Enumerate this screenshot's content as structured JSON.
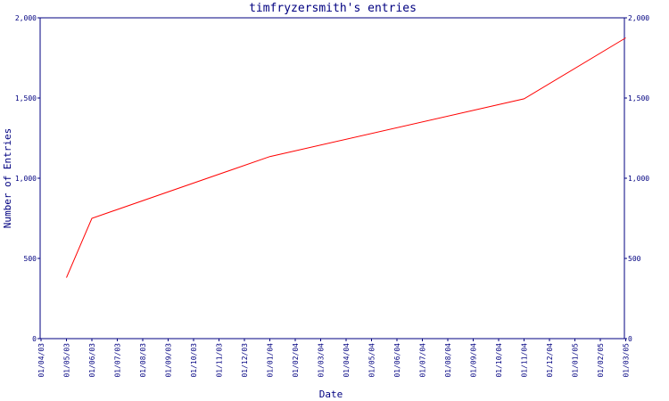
{
  "chart_data": {
    "type": "line",
    "title": "timfryzersmith's entries",
    "xlabel": "Date",
    "ylabel": "Number of Entries",
    "ylim": [
      0,
      2000
    ],
    "y_ticks": [
      0,
      500,
      1000,
      1500,
      2000
    ],
    "y_tick_labels": [
      "0",
      "500",
      "1,000",
      "1,500",
      "2,000"
    ],
    "x_ticks": [
      "01/04/03",
      "01/05/03",
      "01/06/03",
      "01/07/03",
      "01/08/03",
      "01/09/03",
      "01/10/03",
      "01/11/03",
      "01/12/03",
      "01/01/04",
      "01/02/04",
      "01/03/04",
      "01/04/04",
      "01/05/04",
      "01/06/04",
      "01/07/04",
      "01/08/04",
      "01/09/04",
      "01/10/04",
      "01/11/04",
      "01/12/04",
      "01/01/05",
      "01/02/05",
      "01/03/05"
    ],
    "grid": false,
    "series": [
      {
        "color": "#ff0000",
        "points": [
          {
            "x": "01/05/03",
            "y": 380
          },
          {
            "x": "01/06/03",
            "y": 750
          },
          {
            "x": "01/01/04",
            "y": 1135
          },
          {
            "x": "01/11/04",
            "y": 1495
          },
          {
            "x": "01/03/05",
            "y": 1875
          }
        ]
      }
    ]
  }
}
